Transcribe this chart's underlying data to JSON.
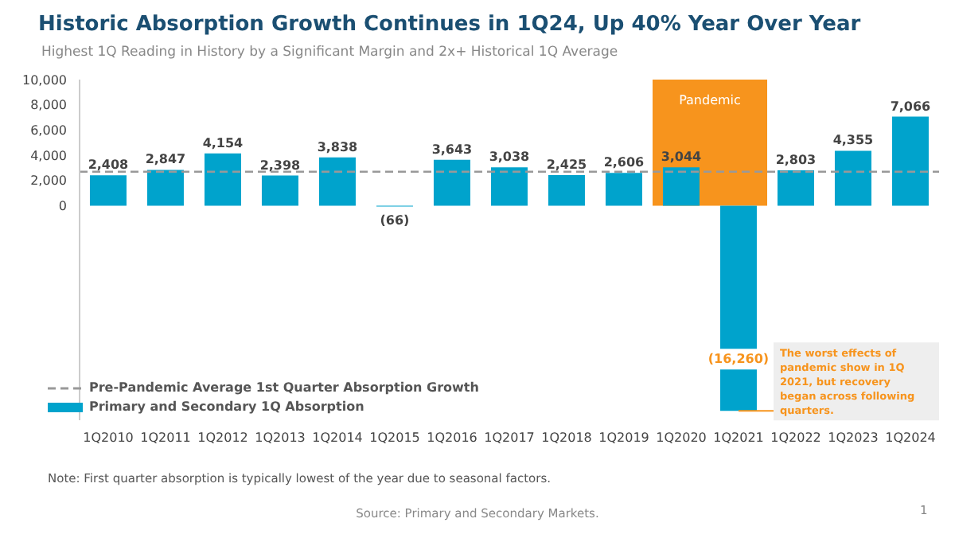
{
  "chart_data": {
    "type": "bar",
    "title": "Historic Absorption Growth Continues in 1Q24, Up 40% Year Over Year",
    "subtitle": "Highest 1Q Reading in History by a Significant Margin and 2x+ Historical 1Q Average",
    "categories": [
      "1Q2010",
      "1Q2011",
      "1Q2012",
      "1Q2013",
      "1Q2014",
      "1Q2015",
      "1Q2016",
      "1Q2017",
      "1Q2018",
      "1Q2019",
      "1Q2020",
      "1Q2021",
      "1Q2022",
      "1Q2023",
      "1Q2024"
    ],
    "series": [
      {
        "name": "Primary and Secondary 1Q Absorption",
        "color": "#00a3cc",
        "values": [
          2408,
          2847,
          4154,
          2398,
          3838,
          -66,
          3643,
          3038,
          2425,
          2606,
          3044,
          -16260,
          2803,
          4355,
          7066
        ],
        "value_labels": [
          "2,408",
          "2,847",
          "4,154",
          "2,398",
          "3,838",
          "(66)",
          "3,643",
          "3,038",
          "2,425",
          "2,606",
          "3,044",
          "(16,260)",
          "2,803",
          "4,355",
          "7,066"
        ]
      }
    ],
    "ylim": [
      -17000,
      10000
    ],
    "yticks": [
      0,
      {
        "value": 2000,
        "label": "2,000"
      },
      {
        "value": 4000,
        "label": "4,000"
      },
      {
        "value": 6000,
        "label": "6,000"
      },
      {
        "value": 8000,
        "label": "8,000"
      },
      {
        "value": 10000,
        "label": "10,000"
      }
    ],
    "ref_lines": [
      {
        "axis": "y",
        "value": 2700,
        "label": "Pre-Pandemic Average 1st Quarter Absorption Growth",
        "color": "#999999",
        "line_style": "dashed"
      }
    ],
    "bands": [
      {
        "axis": "x",
        "from": "1Q2020",
        "to": "1Q2021",
        "label": "Pandemic",
        "color": "#f7941d"
      }
    ],
    "legend": "bottom left",
    "grid": false,
    "annotations": [
      {
        "text": "The worst effects of pandemic show in 1Q 2021, but recovery began across following quarters.",
        "x": "1Q2021",
        "y": -16260
      },
      "Note: First quarter absorption is typically lowest of the year due to seasonal factors.",
      "Source: Primary and Secondary Markets.",
      "1"
    ]
  }
}
